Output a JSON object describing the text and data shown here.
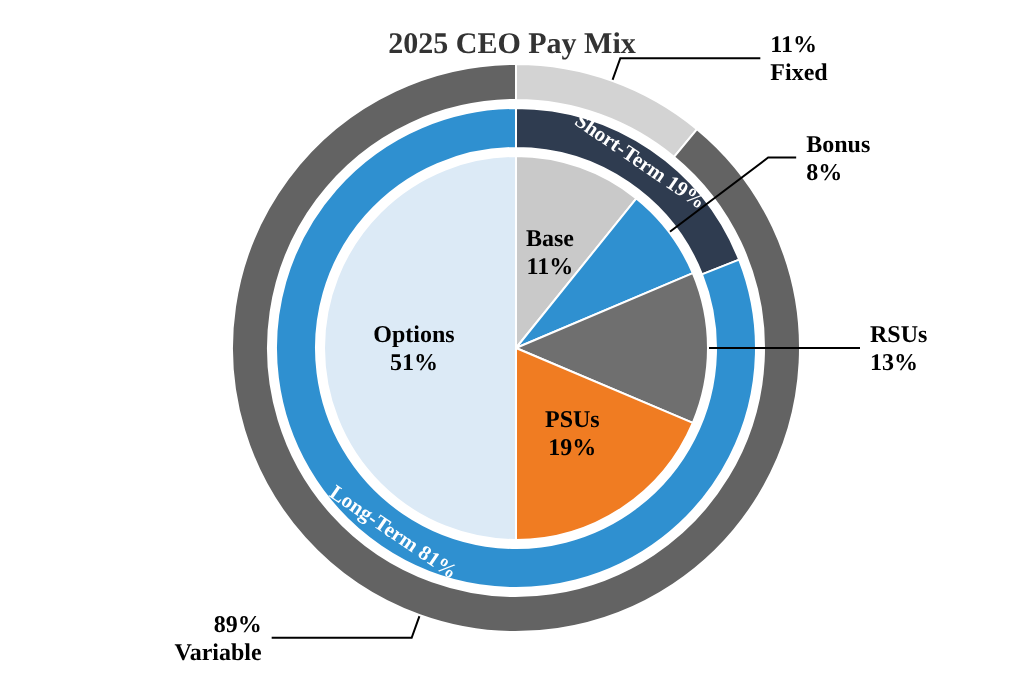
{
  "chart_data": [
    {
      "type": "donut",
      "title": "2025 CEO Pay Mix",
      "data_labels": true,
      "categories": [
        "Fixed",
        "Variable"
      ],
      "values": [
        11,
        89
      ],
      "colors": [
        "#d3d3d3",
        "#636363"
      ],
      "value_labels": [
        "11%",
        "89%"
      ]
    },
    {
      "type": "donut",
      "data_labels": true,
      "categories": [
        "Short-Term",
        "Long-Term"
      ],
      "values": [
        19,
        81
      ],
      "colors": [
        "#2f3c50",
        "#2f90d0"
      ],
      "value_labels": [
        "19%",
        "81%"
      ]
    },
    {
      "type": "pie",
      "data_labels": true,
      "categories": [
        "Base",
        "Bonus",
        "RSUs",
        "PSUs",
        "Options"
      ],
      "values": [
        11,
        8,
        13,
        19,
        51
      ],
      "colors": [
        "#c9c9c9",
        "#2f90d0",
        "#6f6f6f",
        "#f07c22",
        "#dceaf6"
      ],
      "value_labels": [
        "11%",
        "8%",
        "13%",
        "19%",
        "51%"
      ]
    }
  ]
}
